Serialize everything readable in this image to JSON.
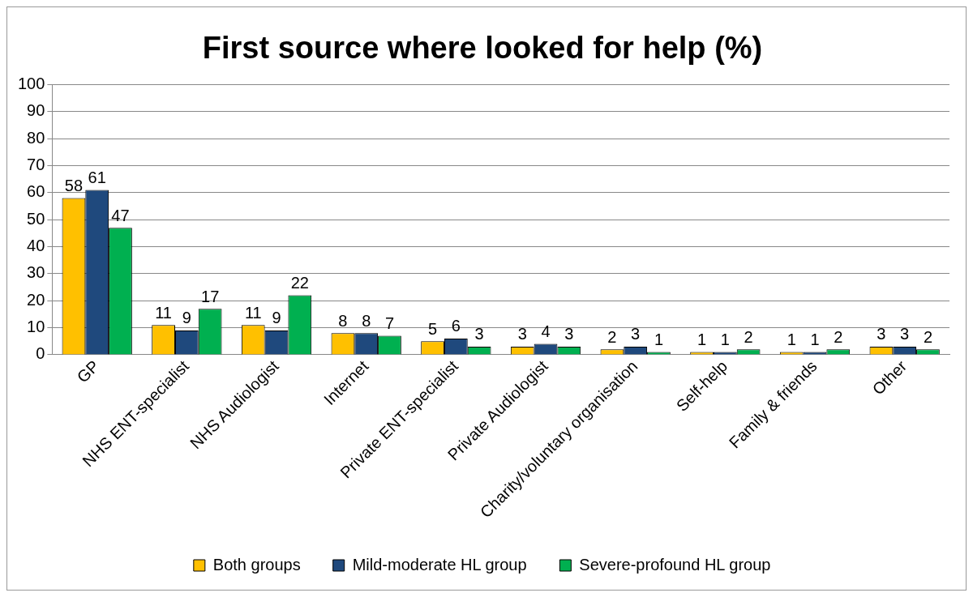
{
  "chart_data": {
    "type": "bar",
    "title": "First source where looked for help (%)",
    "categories": [
      "GP",
      "NHS ENT-specialist",
      "NHS Audiologist",
      "Internet",
      "Private ENT-specialist",
      "Private Audiologist",
      "Charity/voluntary organisation",
      "Self-help",
      "Family & friends",
      "Other"
    ],
    "series": [
      {
        "name": "Both groups",
        "color": "#ffc000",
        "values": [
          58,
          11,
          11,
          8,
          5,
          3,
          2,
          1,
          1,
          3
        ]
      },
      {
        "name": "Mild-moderate HL group",
        "color": "#1f497d",
        "values": [
          61,
          9,
          9,
          8,
          6,
          4,
          3,
          1,
          1,
          3
        ]
      },
      {
        "name": "Severe-profound HL group",
        "color": "#00b050",
        "values": [
          47,
          17,
          22,
          7,
          3,
          3,
          1,
          2,
          2,
          2
        ]
      }
    ],
    "ylim": [
      0,
      100
    ],
    "yticks": [
      0,
      10,
      20,
      30,
      40,
      50,
      60,
      70,
      80,
      90,
      100
    ],
    "grid": "y",
    "legend": "bottom",
    "data_labels": true
  }
}
